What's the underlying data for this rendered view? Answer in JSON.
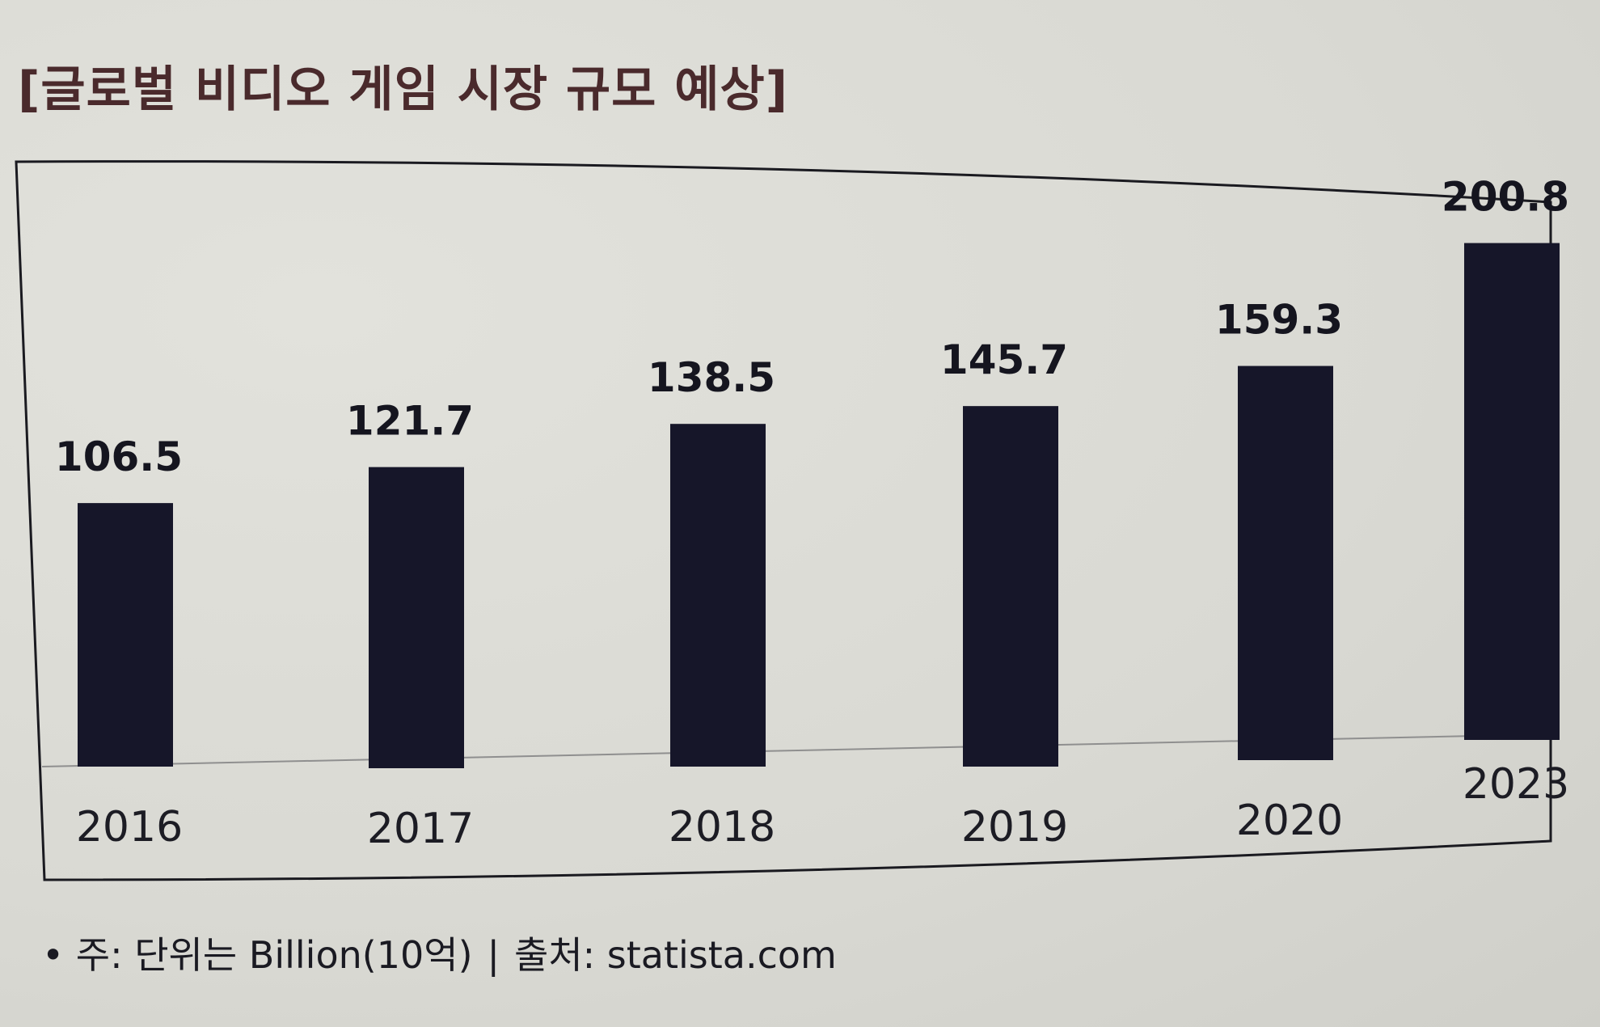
{
  "chart_data": {
    "type": "bar",
    "title": "[글로벌 비디오 게임 시장 규모 예상]",
    "categories": [
      "2016",
      "2017",
      "2018",
      "2019",
      "2020",
      "2023"
    ],
    "values": [
      106.5,
      121.7,
      138.5,
      145.7,
      159.3,
      200.8
    ],
    "value_labels": [
      "106.5",
      "121.7",
      "138.5",
      "145.7",
      "159.3",
      "200.8"
    ],
    "xlabel": "",
    "ylabel": "",
    "ylim": [
      0,
      220
    ],
    "grid": false,
    "legend": "none",
    "bar_color": "#161629"
  },
  "footnote": {
    "bullet": "•",
    "note": "주: 단위는 Billion(10억)",
    "separator": "|",
    "source": "출처: statista.com"
  }
}
